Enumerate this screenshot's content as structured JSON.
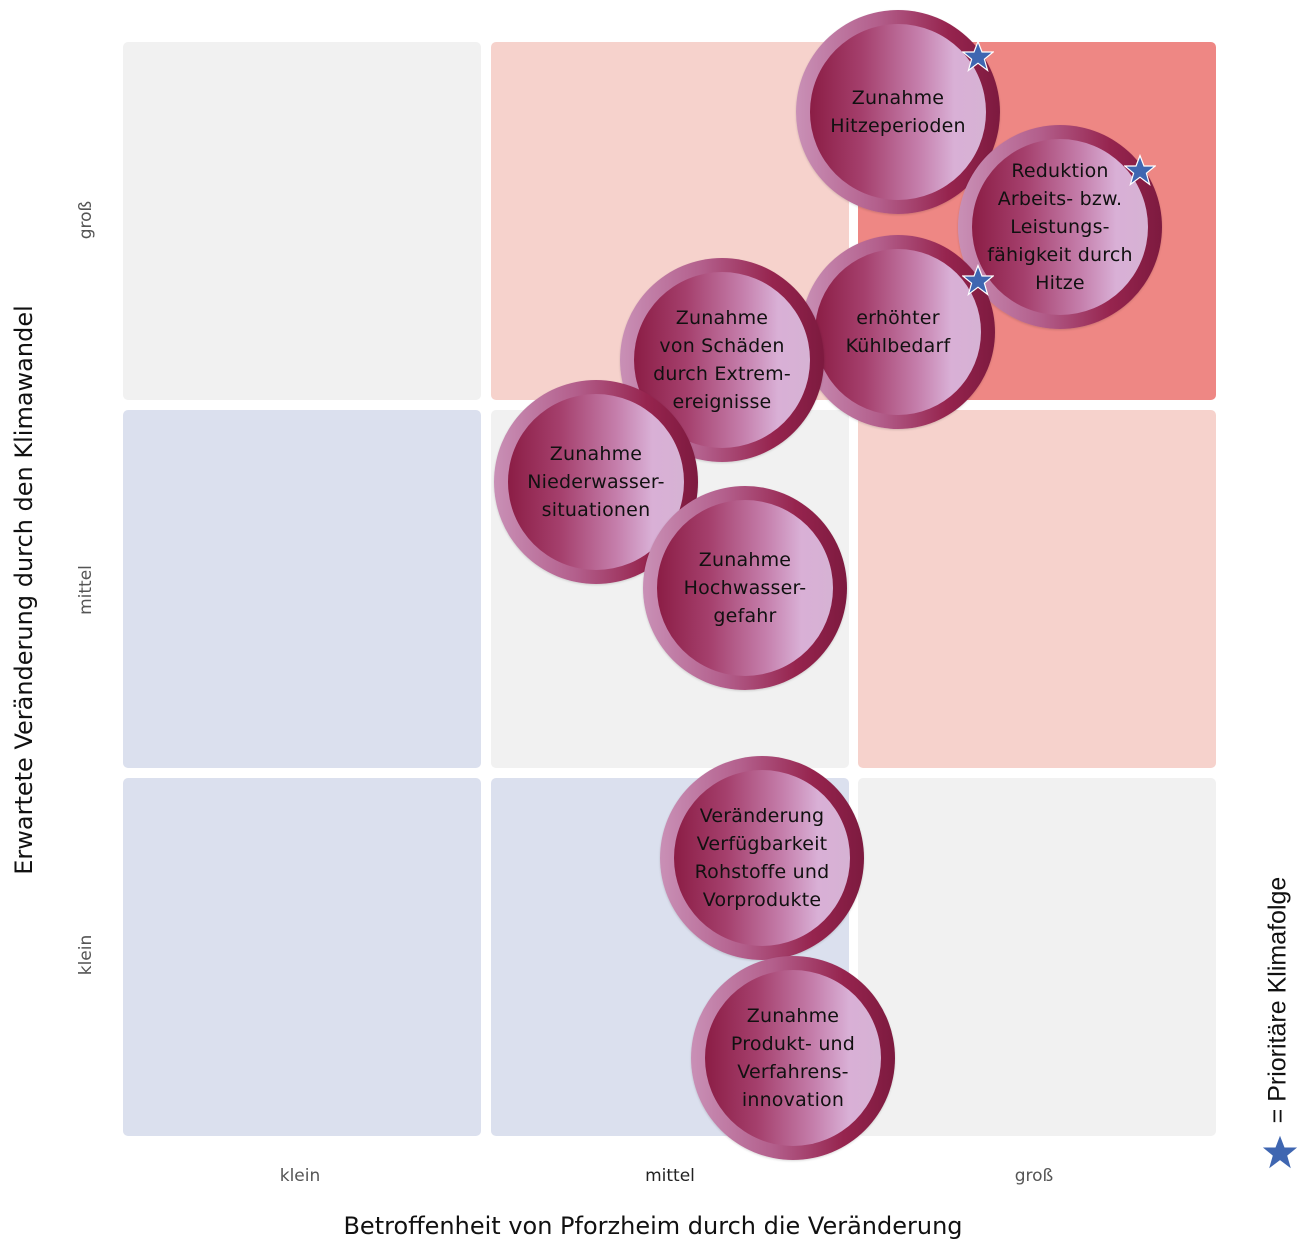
{
  "x_axis": {
    "title": "Betroffenheit von Pforzheim durch die Veränderung",
    "ticks": [
      "klein",
      "mittel",
      "groß"
    ]
  },
  "y_axis": {
    "title": "Erwartete Veränderung durch den Klimawandel",
    "ticks": [
      "klein",
      "mittel",
      "groß"
    ]
  },
  "colors": {
    "grey": "#f1f1f1",
    "light_blue": "#dbe0ee",
    "blue": "#84a0c8",
    "light_red": "#f6d2cc",
    "red": "#ee8784",
    "star": "#3f66b1"
  },
  "cells": [
    [
      "light_blue",
      "light_blue",
      "grey"
    ],
    [
      "light_blue",
      "grey",
      "light_red"
    ],
    [
      "grey",
      "light_red",
      "red"
    ]
  ],
  "items": [
    {
      "label": "Zunahme\nHitzeperioden",
      "x_level": "mittel–groß",
      "y_level": "groß",
      "priority": true
    },
    {
      "label": "Reduktion\nArbeits- bzw.\nLeistungs-\nfähigkeit durch\nHitze",
      "x_level": "groß",
      "y_level": "groß",
      "priority": true
    },
    {
      "label": "erhöhter\nKühlbedarf",
      "x_level": "mittel–groß",
      "y_level": "groß",
      "priority": true
    },
    {
      "label": "Zunahme\nvon Schäden\ndurch Extrem-\nereignisse",
      "x_level": "mittel",
      "y_level": "groß",
      "priority": false
    },
    {
      "label": "Zunahme\nNiederwasser-\nsituationen",
      "x_level": "mittel",
      "y_level": "mittel–groß",
      "priority": false
    },
    {
      "label": "Zunahme\nHochwasser-\ngefahr",
      "x_level": "mittel",
      "y_level": "mittel",
      "priority": false
    },
    {
      "label": "Veränderung\nVerfügbarkeit\nRohstoffe und\nVorprodukte",
      "x_level": "mittel",
      "y_level": "klein",
      "priority": false
    },
    {
      "label": "Zunahme\nProdukt- und\nVerfahrens-\ninnovation",
      "x_level": "mittel",
      "y_level": "klein",
      "priority": false
    }
  ],
  "legend": {
    "icon": "star-icon",
    "text": "= Prioritäre Klimafolge"
  }
}
